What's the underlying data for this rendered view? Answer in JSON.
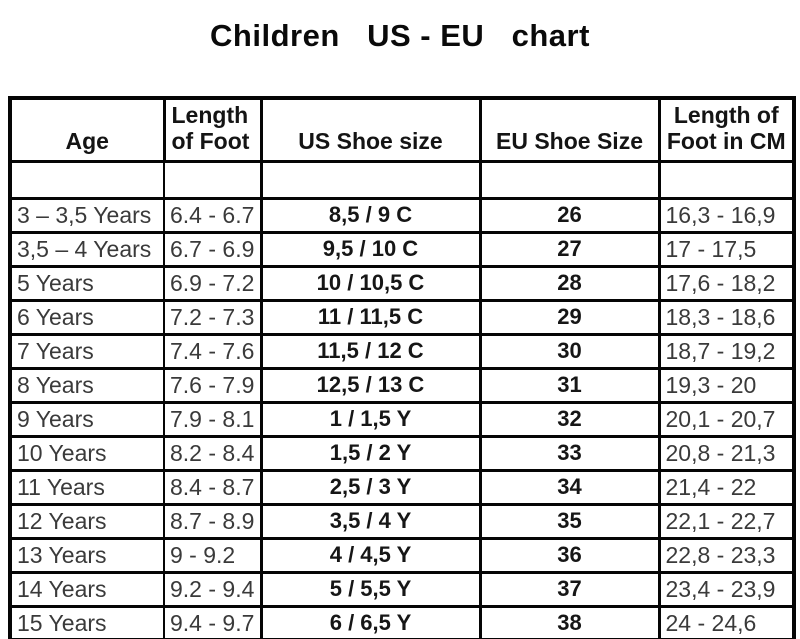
{
  "chart_data": {
    "type": "table",
    "title": "Children   US - EU   chart",
    "columns": [
      "Age",
      "Length\nof Foot",
      "US Shoe size",
      "EU Shoe Size",
      "Length of\nFoot in CM"
    ],
    "rows": [
      [
        "3 – 3,5 Years",
        "6.4 - 6.7",
        "8,5 / 9 C",
        "26",
        "16,3 - 16,9"
      ],
      [
        "3,5 – 4 Years",
        "6.7 - 6.9",
        "9,5 / 10 C",
        "27",
        "17 - 17,5"
      ],
      [
        "5 Years",
        "6.9 - 7.2",
        "10 / 10,5 C",
        "28",
        "17,6 - 18,2"
      ],
      [
        "6 Years",
        "7.2 - 7.3",
        "11 / 11,5 C",
        "29",
        "18,3 - 18,6"
      ],
      [
        "7 Years",
        "7.4 - 7.6",
        "11,5 / 12 C",
        "30",
        "18,7 - 19,2"
      ],
      [
        "8 Years",
        "7.6 - 7.9",
        "12,5 / 13 C",
        "31",
        "19,3 - 20"
      ],
      [
        "9 Years",
        "7.9 - 8.1",
        "1 / 1,5 Y",
        "32",
        "20,1 - 20,7"
      ],
      [
        "10 Years",
        "8.2 - 8.4",
        "1,5 / 2 Y",
        "33",
        "20,8 - 21,3"
      ],
      [
        "11 Years",
        "8.4 - 8.7",
        "2,5 / 3 Y",
        "34",
        "21,4 - 22"
      ],
      [
        "12 Years",
        "8.7 - 8.9",
        "3,5 / 4 Y",
        "35",
        "22,1 - 22,7"
      ],
      [
        "13 Years",
        "9 - 9.2",
        "4 / 4,5 Y",
        "36",
        "22,8 - 23,3"
      ],
      [
        "14 Years",
        "9.2 - 9.4",
        "5 / 5,5 Y",
        "37",
        "23,4 - 23,9"
      ],
      [
        "15 Years",
        "9.4 - 9.7",
        "6 / 6,5 Y",
        "38",
        "24 - 24,6"
      ]
    ],
    "layout": {
      "grid": "on",
      "header_position": "top",
      "spacer_row_after_header": true
    },
    "colors": {
      "background": "#ffffff",
      "border": "#050505",
      "title_text": "#0a0a0a",
      "body_text": "#3a3a3a",
      "bold_text": "#161616"
    }
  }
}
